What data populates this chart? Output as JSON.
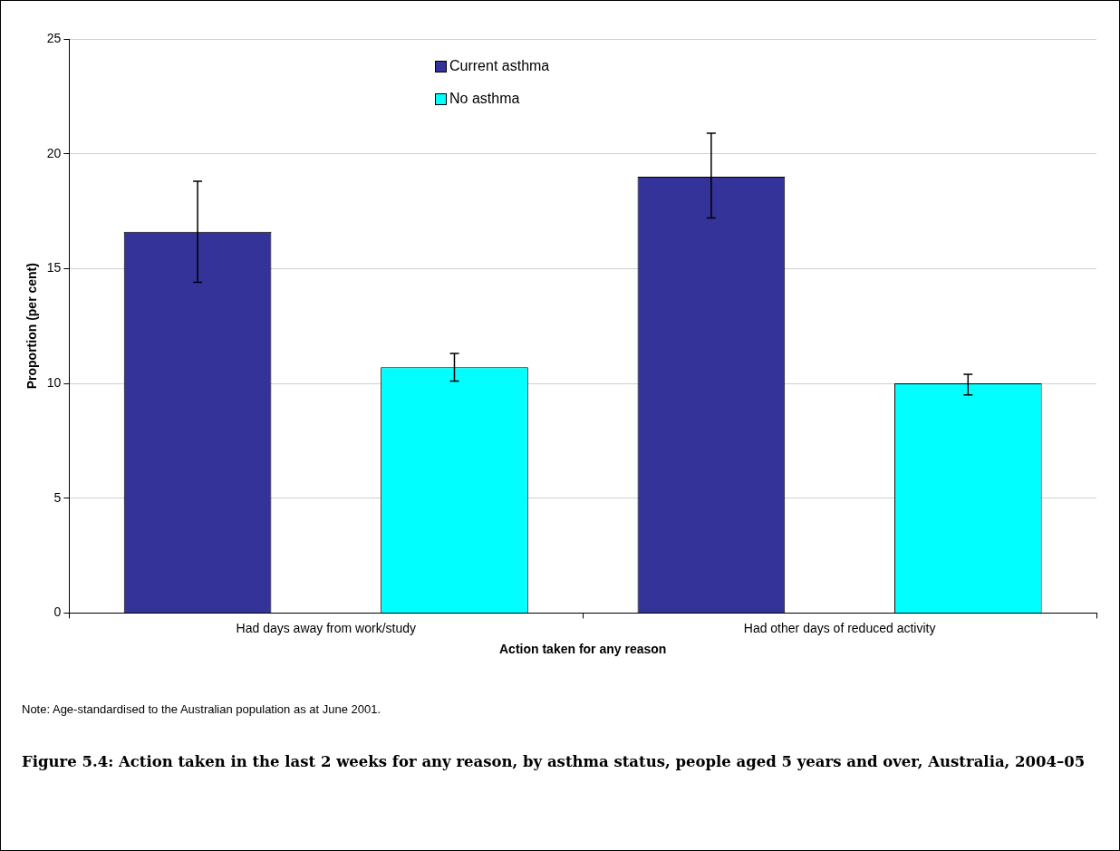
{
  "chart_data": {
    "type": "bar",
    "title": "Figure 5.4: Action taken in the last 2 weeks for any reason, by asthma status, people aged 5 years and over, Australia, 2004–05",
    "xlabel": "Action taken for any reason",
    "ylabel": "Proportion (per cent)",
    "categories": [
      "Had days away from work/study",
      "Had other days of reduced activity"
    ],
    "series": [
      {
        "name": "Current asthma",
        "color": "#333399",
        "values": [
          16.6,
          19.0
        ],
        "errors": [
          [
            14.4,
            18.8
          ],
          [
            17.2,
            20.9
          ]
        ]
      },
      {
        "name": "No asthma",
        "color": "#00ffff",
        "values": [
          10.7,
          10.0
        ],
        "errors": [
          [
            10.1,
            11.3
          ],
          [
            9.5,
            10.4
          ]
        ]
      }
    ],
    "ylim": [
      0,
      25
    ],
    "yticks": [
      0,
      5,
      10,
      15,
      20,
      25
    ],
    "grid": "y",
    "legend": "top",
    "annotations": [
      "Note: Age-standardised to the Australian population as at June 2001."
    ]
  }
}
